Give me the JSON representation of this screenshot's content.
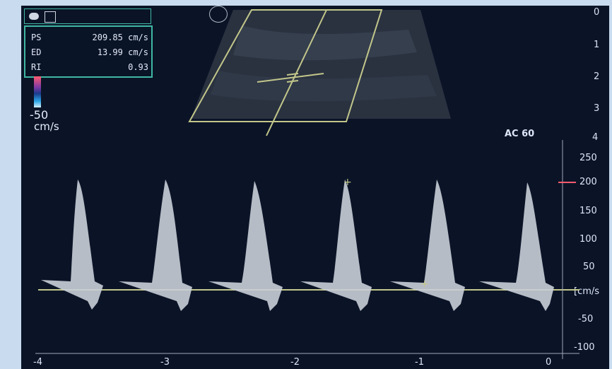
{
  "measurements": {
    "ps": {
      "label": "PS",
      "value": "209.85 cm/s"
    },
    "ed": {
      "label": "ED",
      "value": "13.99 cm/s"
    },
    "ri": {
      "label": "RI",
      "value": "0.93"
    }
  },
  "color_scale": {
    "value": "-50",
    "unit": "cm/s"
  },
  "acoustic": {
    "label": "AC 60"
  },
  "depth_scale": [
    "0",
    "1",
    "2",
    "3",
    "4"
  ],
  "velocity_scale": [
    "250",
    "200",
    "150",
    "100",
    "50",
    "[cm/s",
    "-50",
    "-100"
  ],
  "time_axis": [
    "-4",
    "-3",
    "-2",
    "-1",
    "0"
  ],
  "icons": [
    "pill-icon",
    "probe-icon",
    "ge-logo-icon"
  ],
  "colors": {
    "background": "#0b1427",
    "frame": "#c9dbee",
    "accent": "#3fb7a3",
    "gate": "#c2c68a"
  }
}
